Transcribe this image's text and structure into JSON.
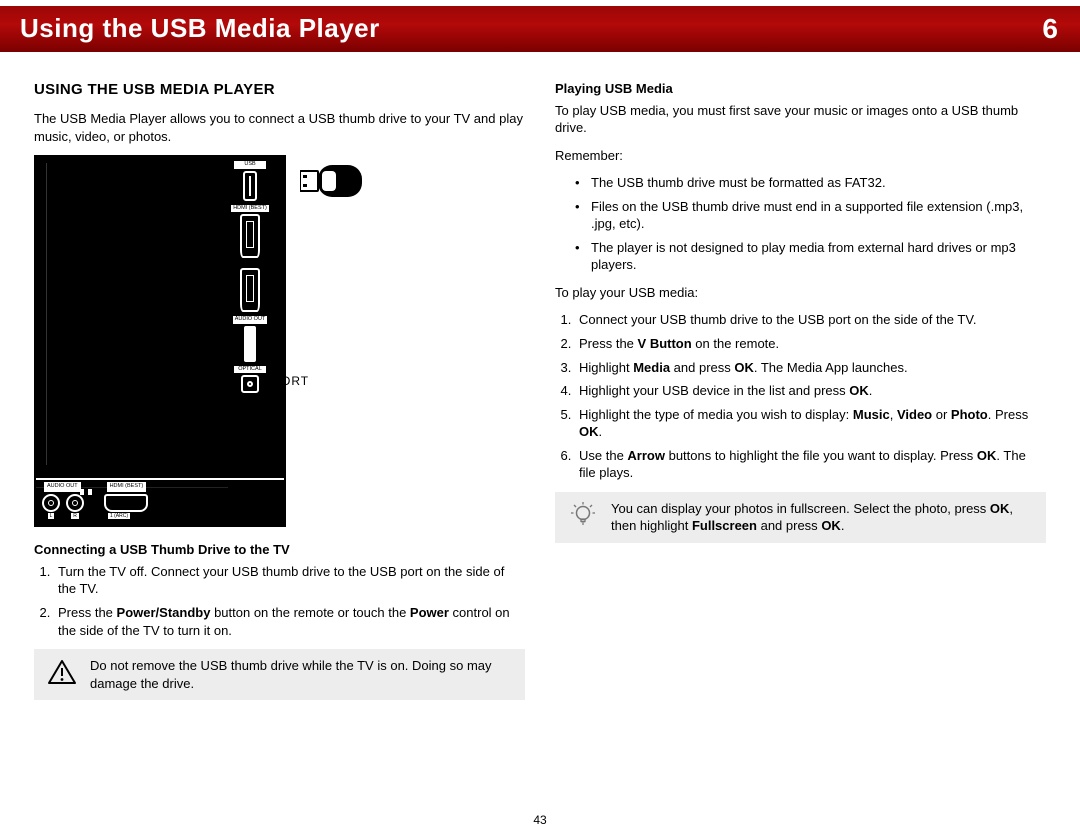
{
  "header": {
    "title": "Using the USB Media Player",
    "chapter": "6",
    "bg_gradient": [
      "#9c0606",
      "#b30909",
      "#7a0000"
    ],
    "text_color": "#ffffff"
  },
  "left": {
    "section_title": "USING THE USB MEDIA PLAYER",
    "intro": "The USB Media Player allows you to connect a USB thumb drive to your TV and play music, video, or photos.",
    "figure": {
      "ports": {
        "usb_label": "USB",
        "hdmi_label": "HDMI (BEST)",
        "audio_out_label": "AUDIO OUT",
        "optical_label": "OPTICAL",
        "bottom_audio_label": "AUDIO OUT",
        "bottom_hdmi_label": "HDMI (BEST)",
        "audio_l": "L",
        "audio_r": "R",
        "hdmi_num": "1 (ARC)"
      },
      "caption": "USB PORT"
    },
    "sub1_title": "Connecting a USB Thumb Drive to the TV",
    "sub1_steps": [
      "Turn the TV off. Connect your USB thumb drive to the USB port on the side of the TV.",
      "Press the <b>Power/Standby</b> button on the remote or touch the <b>Power</b> control on the side of the TV to turn it on."
    ],
    "warning": "Do not remove the USB thumb drive while the TV is on. Doing so may damage the drive."
  },
  "right": {
    "sub2_title": "Playing USB Media",
    "intro": "To play USB media, you must first save your music or images onto a USB thumb drive.",
    "remember_label": "Remember:",
    "remember_bullets": [
      "The USB thumb drive must be formatted as FAT32.",
      "Files on the USB thumb drive must end in a supported file extension (.mp3, .jpg, etc).",
      "The player is not designed to play media from external hard drives or mp3 players."
    ],
    "play_intro": "To play your USB media:",
    "play_steps": [
      "Connect your USB thumb drive to the USB port on the side of the TV.",
      "Press the <b>V Button</b> on the remote.",
      "Highlight <b>Media</b> and press <b>OK</b>. The Media App launches.",
      "Highlight your USB device in the list and press <b>OK</b>.",
      "Highlight the type of media you wish to display: <b>Music</b>, <b>Video</b> or <b>Photo</b>. Press <b>OK</b>.",
      "Use the <b>Arrow</b> buttons to highlight the file you want to display. Press <b>OK</b>. The file plays."
    ],
    "tip": "You can display your photos in fullscreen. Select the photo, press <b>OK</b>, then highlight <b>Fullscreen</b> and press <b>OK</b>."
  },
  "page_number": "43",
  "colors": {
    "callout_bg": "#ededed",
    "text": "#000000",
    "panel_bg": "#000000",
    "panel_stroke": "#ffffff"
  }
}
